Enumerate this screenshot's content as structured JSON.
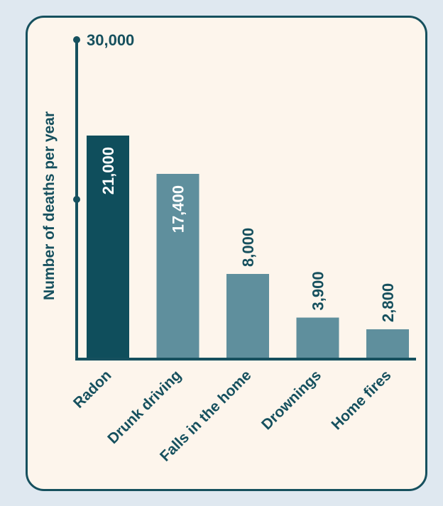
{
  "colors": {
    "background": "#dfe8f0",
    "card": "#fdf5ec",
    "accent": "#16505e",
    "highlight_bar": "#0f4e5c",
    "bar": "#5f8f9d"
  },
  "chart_data": {
    "type": "bar",
    "title": "",
    "xlabel": "",
    "ylabel": "Number of deaths per year",
    "ylim": [
      0,
      30000
    ],
    "y_ticks": [
      15000,
      30000
    ],
    "y_tick_labels": [
      "",
      "30,000"
    ],
    "categories": [
      "Radon",
      "Drunk driving",
      "Falls in the home",
      "Drownings",
      "Home fires"
    ],
    "values": [
      21000,
      17400,
      8000,
      3900,
      2800
    ],
    "value_labels": [
      "21,000",
      "17,400",
      "8,000",
      "3,900",
      "2,800"
    ],
    "highlighted_category": "Radon",
    "grid": false,
    "legend": "none"
  }
}
